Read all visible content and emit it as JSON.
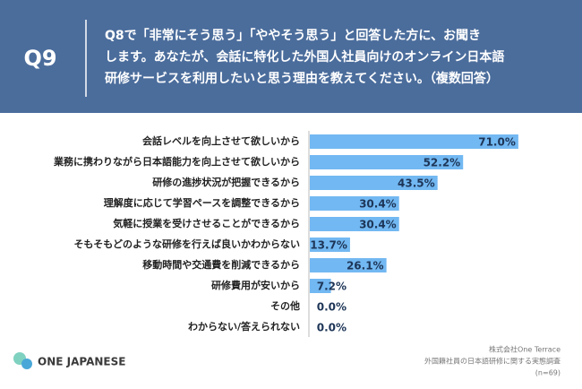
{
  "header": {
    "label": "Q9",
    "question": [
      "Q8で「非常にそう思う」「ややそう思う」と回答した方に、お聞き",
      "します。あなたが、会話に特化した外国人社員向けのオンライン日本語",
      "研修サービスを利用したいと思う理由を教えてください。（複数回答）"
    ]
  },
  "chart_data": {
    "type": "bar",
    "orientation": "horizontal",
    "color": "#72b8f2",
    "categories": [
      "会話レベルを向上させて欲しいから",
      "業務に携わりながら日本語能力を向上させて欲しいから",
      "研修の進捗状況が把握できるから",
      "理解度に応じて学習ペースを調整できるから",
      "気軽に授業を受けさせることができるから",
      "そもそもどのような研修を行えば良いかわからない",
      "移動時間や交通費を削減できるから",
      "研修費用が安いから",
      "その他",
      "わからない/答えられない"
    ],
    "values": [
      71.0,
      52.2,
      43.5,
      30.4,
      30.4,
      13.7,
      26.1,
      7.2,
      0.0,
      0.0
    ],
    "value_labels": [
      "71.0%",
      "52.2%",
      "43.5%",
      "30.4%",
      "30.4%",
      "13.7%",
      "26.1%",
      "7.2%",
      "0.0%",
      "0.0%"
    ]
  },
  "footer": {
    "logo": "ONE JAPANESE",
    "source": [
      "株式会社One Terrace",
      "外国籍社員の日本語研修に関する実態調査",
      "(n=69)"
    ]
  }
}
